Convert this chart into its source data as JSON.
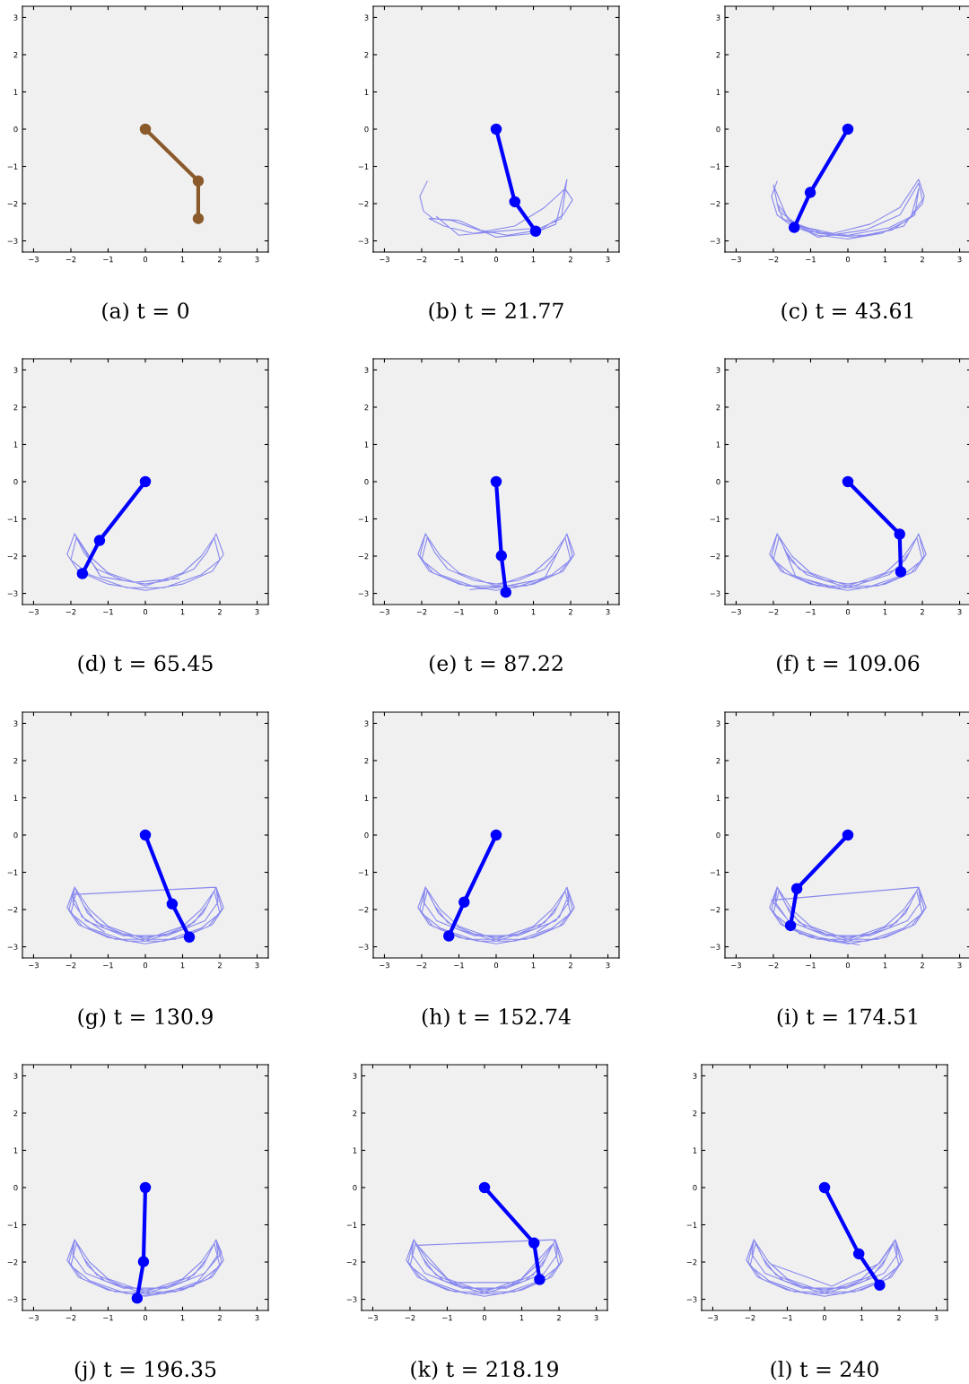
{
  "chart_data": [
    {
      "type": "line",
      "title": "(a) t = 0",
      "xlim": [
        -3.3,
        3.3
      ],
      "ylim": [
        -3.3,
        3.3
      ],
      "xticks": [
        {
          "value": -3,
          "label": "−3"
        },
        {
          "value": -2,
          "label": "−2"
        },
        {
          "value": -1,
          "label": "−1"
        },
        0,
        1,
        2,
        3
      ],
      "yticks": [
        {
          "value": -3,
          "label": "−3"
        },
        {
          "value": -2,
          "label": "−2"
        },
        {
          "value": -1,
          "label": "−1"
        },
        0,
        1,
        2,
        3
      ],
      "grid": false,
      "series": [
        {
          "color": "#8b5a2b",
          "marker": "circle",
          "x": [
            0,
            1.42,
            1.42
          ],
          "values": [
            0,
            -1.39,
            -2.4
          ]
        }
      ]
    },
    {
      "type": "line",
      "title": "(b) t = 21.77",
      "xlim": [
        -3.3,
        3.3
      ],
      "ylim": [
        -3.3,
        3.3
      ],
      "xticks": [
        {
          "value": -3,
          "label": "−3"
        },
        {
          "value": -2,
          "label": "−2"
        },
        {
          "value": -1,
          "label": "−1"
        },
        0,
        1,
        2,
        3
      ],
      "yticks": [
        {
          "value": -3,
          "label": "−3"
        },
        {
          "value": -2,
          "label": "−2"
        },
        {
          "value": -1,
          "label": "−1"
        },
        0,
        1,
        2,
        3
      ],
      "grid": false,
      "series": [
        {
          "color": "#7777ee",
          "x": [
            -1.85,
            -2.05,
            -1.95,
            -1.7,
            -1.2,
            -0.5,
            0.3,
            1.2,
            1.8,
            2.05,
            1.85,
            1.3,
            0.5,
            -0.6,
            -1.4,
            -1.8,
            -1.0,
            0,
            1.0,
            1.6,
            1.9,
            1.75,
            1.2,
            0,
            -1.0,
            -1.6
          ],
          "values": [
            -1.4,
            -1.8,
            -2.2,
            -2.4,
            -2.45,
            -2.7,
            -2.85,
            -2.7,
            -2.3,
            -1.9,
            -1.6,
            -2.1,
            -2.6,
            -2.8,
            -2.6,
            -2.4,
            -2.45,
            -2.9,
            -2.8,
            -2.55,
            -1.35,
            -2.4,
            -2.65,
            -2.75,
            -2.85,
            -2.35
          ]
        },
        {
          "color": "#0000ff",
          "marker": "circle",
          "x": [
            0,
            0.5,
            1.06
          ],
          "values": [
            0,
            -1.95,
            -2.74
          ]
        }
      ]
    },
    {
      "type": "line",
      "title": "(c) t = 43.61",
      "xlim": [
        -3.3,
        3.3
      ],
      "ylim": [
        -3.3,
        3.3
      ],
      "xticks": [
        {
          "value": -3,
          "label": "−3"
        },
        {
          "value": -2,
          "label": "−2"
        },
        {
          "value": -1,
          "label": "−1"
        },
        0,
        1,
        2,
        3
      ],
      "yticks": [
        {
          "value": -3,
          "label": "−3"
        },
        {
          "value": -2,
          "label": "−2"
        },
        {
          "value": -1,
          "label": "−1"
        },
        0,
        1,
        2,
        3
      ],
      "grid": false,
      "series": [
        {
          "color": "#7777ee",
          "x": [
            -1.9,
            -2.05,
            -1.9,
            -1.5,
            -0.8,
            0,
            0.9,
            1.6,
            2.0,
            2.05,
            1.9,
            1.4,
            0.6,
            -0.4,
            -1.3,
            -1.85,
            -2.0,
            -1.6,
            -0.8,
            0.2,
            1.2,
            1.8,
            1.9,
            1.7,
            1.1,
            0,
            -1.0,
            -1.75,
            -1.9,
            -1.5,
            -0.5,
            0.6,
            1.5,
            2.0,
            1.9,
            1.4,
            0.5,
            -0.8,
            -1.6
          ],
          "values": [
            -1.4,
            -1.8,
            -2.3,
            -2.6,
            -2.85,
            -2.95,
            -2.8,
            -2.45,
            -2.0,
            -1.8,
            -1.35,
            -2.1,
            -2.55,
            -2.8,
            -2.6,
            -2.2,
            -1.5,
            -2.45,
            -2.8,
            -2.9,
            -2.7,
            -2.3,
            -1.6,
            -2.35,
            -2.65,
            -2.85,
            -2.75,
            -2.4,
            -2.0,
            -2.5,
            -2.85,
            -2.85,
            -2.6,
            -1.9,
            -1.45,
            -2.3,
            -2.7,
            -2.9,
            -2.45
          ]
        },
        {
          "color": "#0000ff",
          "marker": "circle",
          "x": [
            0,
            -1.01,
            -1.44
          ],
          "values": [
            0,
            -1.7,
            -2.64
          ]
        }
      ]
    },
    {
      "type": "line",
      "title": "(d) t = 65.45",
      "xlim": [
        -3.3,
        3.3
      ],
      "ylim": [
        -3.3,
        3.3
      ],
      "xticks": [
        {
          "value": -3,
          "label": "−3"
        },
        {
          "value": -2,
          "label": "−2"
        },
        {
          "value": -1,
          "label": "−1"
        },
        0,
        1,
        2,
        3
      ],
      "yticks": [
        {
          "value": -3,
          "label": "−3"
        },
        {
          "value": -2,
          "label": "−2"
        },
        {
          "value": -1,
          "label": "−1"
        },
        0,
        1,
        2,
        3
      ],
      "grid": false,
      "series": [
        {
          "color": "#7777ee",
          "x": [
            -1.9,
            -2.1,
            -1.8,
            -1.0,
            0,
            1.0,
            1.8,
            2.1,
            1.9,
            1.65,
            1.3,
            0.6,
            0,
            -0.6,
            -1.3,
            -1.65,
            -1.85,
            -2.0,
            -1.5,
            -0.5,
            0.5,
            1.5,
            2.0,
            1.85,
            1.5,
            1.0,
            0,
            -1.0,
            -1.5,
            -1.9,
            -1.2,
            -0.3,
            0.9
          ],
          "values": [
            -1.4,
            -1.95,
            -2.4,
            -2.75,
            -2.92,
            -2.75,
            -2.4,
            -1.95,
            -1.4,
            -1.9,
            -2.35,
            -2.65,
            -2.75,
            -2.65,
            -2.35,
            -1.9,
            -1.5,
            -2.1,
            -2.5,
            -2.85,
            -2.85,
            -2.5,
            -2.1,
            -1.5,
            -2.0,
            -2.45,
            -2.8,
            -2.45,
            -2.0,
            -1.4,
            -2.55,
            -2.7,
            -2.6
          ]
        },
        {
          "color": "#0000ff",
          "marker": "circle",
          "x": [
            0,
            -1.23,
            -1.69
          ],
          "values": [
            0,
            -1.58,
            -2.47
          ]
        }
      ]
    },
    {
      "type": "line",
      "title": "(e) t = 87.22",
      "xlim": [
        -3.3,
        3.3
      ],
      "ylim": [
        -3.3,
        3.3
      ],
      "xticks": [
        {
          "value": -3,
          "label": "−3"
        },
        {
          "value": -2,
          "label": "−2"
        },
        {
          "value": -1,
          "label": "−1"
        },
        0,
        1,
        2,
        3
      ],
      "yticks": [
        {
          "value": -3,
          "label": "−3"
        },
        {
          "value": -2,
          "label": "−2"
        },
        {
          "value": -1,
          "label": "−1"
        },
        0,
        1,
        2,
        3
      ],
      "grid": false,
      "series": [
        {
          "color": "#7777ee",
          "x": [
            -1.9,
            -2.1,
            -1.8,
            -1.0,
            0,
            1.0,
            1.8,
            2.1,
            1.9,
            1.65,
            1.3,
            0.6,
            0,
            -0.6,
            -1.3,
            -1.65,
            -1.85,
            -2.0,
            -1.5,
            -0.5,
            0.5,
            1.5,
            2.0,
            1.85,
            1.5,
            1.0,
            0,
            -1.0,
            -1.5,
            -1.9,
            -2.05,
            -1.7,
            -0.8,
            0.8,
            1.7,
            2.05,
            1.9,
            1.3,
            0.4,
            -0.7
          ],
          "values": [
            -1.4,
            -1.95,
            -2.4,
            -2.75,
            -2.92,
            -2.75,
            -2.4,
            -1.95,
            -1.4,
            -1.9,
            -2.35,
            -2.65,
            -2.75,
            -2.65,
            -2.35,
            -1.9,
            -1.5,
            -2.1,
            -2.5,
            -2.85,
            -2.85,
            -2.5,
            -2.1,
            -1.5,
            -2.0,
            -2.45,
            -2.8,
            -2.45,
            -2.0,
            -1.4,
            -2.0,
            -2.45,
            -2.8,
            -2.8,
            -2.45,
            -2.0,
            -1.4,
            -2.6,
            -2.78,
            -2.9
          ]
        },
        {
          "color": "#0000ff",
          "marker": "circle",
          "x": [
            0,
            0.14,
            0.26
          ],
          "values": [
            0,
            -1.99,
            -2.97
          ]
        }
      ]
    },
    {
      "type": "line",
      "title": "(f) t = 109.06",
      "xlim": [
        -3.3,
        3.3
      ],
      "ylim": [
        -3.3,
        3.3
      ],
      "xticks": [
        {
          "value": -3,
          "label": "−3"
        },
        {
          "value": -2,
          "label": "−2"
        },
        {
          "value": -1,
          "label": "−1"
        },
        0,
        1,
        2,
        3
      ],
      "yticks": [
        {
          "value": -3,
          "label": "−3"
        },
        {
          "value": -2,
          "label": "−2"
        },
        {
          "value": -1,
          "label": "−1"
        },
        0,
        1,
        2,
        3
      ],
      "grid": false,
      "series": [
        {
          "color": "#7777ee",
          "x": [
            -1.9,
            -2.1,
            -1.8,
            -1.0,
            0,
            1.0,
            1.8,
            2.1,
            1.9,
            1.65,
            1.3,
            0.6,
            0,
            -0.6,
            -1.3,
            -1.65,
            -1.85,
            -2.0,
            -1.5,
            -0.5,
            0.5,
            1.5,
            2.0,
            1.85,
            1.5,
            1.0,
            0,
            -1.0,
            -1.5,
            -1.9,
            -2.05,
            -1.7,
            -0.8,
            0.8,
            1.7,
            2.05,
            1.9,
            1.55,
            1.1,
            0,
            -1.1,
            -1.55,
            -1.9,
            -1.75,
            -1.4,
            -0.2
          ],
          "values": [
            -1.4,
            -1.95,
            -2.4,
            -2.75,
            -2.92,
            -2.75,
            -2.4,
            -1.95,
            -1.4,
            -1.9,
            -2.35,
            -2.65,
            -2.75,
            -2.65,
            -2.35,
            -1.9,
            -1.5,
            -2.1,
            -2.5,
            -2.85,
            -2.85,
            -2.5,
            -2.1,
            -1.5,
            -2.0,
            -2.45,
            -2.8,
            -2.45,
            -2.0,
            -1.4,
            -2.0,
            -2.45,
            -2.8,
            -2.8,
            -2.45,
            -2.0,
            -1.4,
            -2.1,
            -2.5,
            -2.85,
            -2.5,
            -2.1,
            -1.4,
            -1.7,
            -2.55,
            -2.88
          ]
        },
        {
          "color": "#0000ff",
          "marker": "circle",
          "x": [
            0,
            1.39,
            1.42
          ],
          "values": [
            0,
            -1.41,
            -2.42
          ]
        }
      ]
    },
    {
      "type": "line",
      "title": "(g) t = 130.9",
      "xlim": [
        -3.3,
        3.3
      ],
      "ylim": [
        -3.3,
        3.3
      ],
      "xticks": [
        {
          "value": -3,
          "label": "−3"
        },
        {
          "value": -2,
          "label": "−2"
        },
        {
          "value": -1,
          "label": "−1"
        },
        0,
        1,
        2,
        3
      ],
      "yticks": [
        {
          "value": -3,
          "label": "−3"
        },
        {
          "value": -2,
          "label": "−2"
        },
        {
          "value": -1,
          "label": "−1"
        },
        0,
        1,
        2,
        3
      ],
      "grid": false,
      "series": [
        {
          "color": "#7777ee",
          "x": [
            -1.9,
            -2.1,
            -1.8,
            -1.0,
            0,
            1.0,
            1.8,
            2.1,
            1.9,
            1.65,
            1.3,
            0.6,
            0,
            -0.6,
            -1.3,
            -1.65,
            -1.85,
            -2.0,
            -1.5,
            -0.5,
            0.5,
            1.5,
            2.0,
            1.85,
            1.5,
            1.0,
            0,
            -1.0,
            -1.5,
            -1.9,
            -2.05,
            -1.7,
            -0.8,
            0.8,
            1.7,
            2.05,
            1.9,
            1.55,
            1.1,
            0,
            -1.1,
            -1.55,
            -1.9,
            -1.95,
            -1.6,
            -0.6,
            0.6,
            1.6,
            1.95,
            1.9,
            -1.95,
            -1.7,
            -1.1
          ],
          "values": [
            -1.4,
            -1.95,
            -2.4,
            -2.75,
            -2.92,
            -2.75,
            -2.4,
            -1.95,
            -1.4,
            -1.9,
            -2.35,
            -2.65,
            -2.75,
            -2.65,
            -2.35,
            -1.9,
            -1.5,
            -2.1,
            -2.5,
            -2.85,
            -2.85,
            -2.5,
            -2.1,
            -1.5,
            -2.0,
            -2.45,
            -2.8,
            -2.45,
            -2.0,
            -1.4,
            -2.0,
            -2.45,
            -2.8,
            -2.8,
            -2.45,
            -2.0,
            -1.4,
            -2.1,
            -2.5,
            -2.85,
            -2.5,
            -2.1,
            -1.4,
            -1.8,
            -2.3,
            -2.7,
            -2.7,
            -2.3,
            -1.8,
            -1.4,
            -1.6,
            -2.2,
            -2.6
          ]
        },
        {
          "color": "#0000ff",
          "marker": "circle",
          "x": [
            0,
            0.72,
            1.18
          ],
          "values": [
            0,
            -1.85,
            -2.74
          ]
        }
      ]
    },
    {
      "type": "line",
      "title": "(h) t = 152.74",
      "xlim": [
        -3.3,
        3.3
      ],
      "ylim": [
        -3.3,
        3.3
      ],
      "xticks": [
        {
          "value": -3,
          "label": "−3"
        },
        {
          "value": -2,
          "label": "−2"
        },
        {
          "value": -1,
          "label": "−1"
        },
        0,
        1,
        2,
        3
      ],
      "yticks": [
        {
          "value": -3,
          "label": "−3"
        },
        {
          "value": -2,
          "label": "−2"
        },
        {
          "value": -1,
          "label": "−1"
        },
        0,
        1,
        2,
        3
      ],
      "grid": false,
      "series": [
        {
          "color": "#7777ee",
          "x": [
            -1.9,
            -2.1,
            -1.8,
            -1.0,
            0,
            1.0,
            1.8,
            2.1,
            1.9,
            1.65,
            1.3,
            0.6,
            0,
            -0.6,
            -1.3,
            -1.65,
            -1.85,
            -2.0,
            -1.5,
            -0.5,
            0.5,
            1.5,
            2.0,
            1.85,
            1.5,
            1.0,
            0,
            -1.0,
            -1.5,
            -1.9,
            -2.05,
            -1.7,
            -0.8,
            0.8,
            1.7,
            2.05,
            1.9,
            1.55,
            1.1,
            0,
            -1.1,
            -1.55,
            -1.9,
            -1.95,
            -1.6,
            -0.6,
            0.6,
            1.6,
            1.95,
            1.9,
            1.95,
            1.7,
            1.1
          ],
          "values": [
            -1.4,
            -1.95,
            -2.4,
            -2.75,
            -2.92,
            -2.75,
            -2.4,
            -1.95,
            -1.4,
            -1.9,
            -2.35,
            -2.65,
            -2.75,
            -2.65,
            -2.35,
            -1.9,
            -1.5,
            -2.1,
            -2.5,
            -2.85,
            -2.85,
            -2.5,
            -2.1,
            -1.5,
            -2.0,
            -2.45,
            -2.8,
            -2.45,
            -2.0,
            -1.4,
            -2.0,
            -2.45,
            -2.8,
            -2.8,
            -2.45,
            -2.0,
            -1.4,
            -2.1,
            -2.5,
            -2.85,
            -2.5,
            -2.1,
            -1.4,
            -1.8,
            -2.3,
            -2.7,
            -2.7,
            -2.3,
            -1.8,
            -1.4,
            -1.6,
            -2.2,
            -2.6
          ]
        },
        {
          "color": "#0000ff",
          "marker": "circle",
          "x": [
            0,
            -0.86,
            -1.27
          ],
          "values": [
            0,
            -1.8,
            -2.71
          ]
        }
      ]
    },
    {
      "type": "line",
      "title": "(i) t = 174.51",
      "xlim": [
        -3.3,
        3.3
      ],
      "ylim": [
        -3.3,
        3.3
      ],
      "xticks": [
        {
          "value": -3,
          "label": "−3"
        },
        {
          "value": -2,
          "label": "−2"
        },
        {
          "value": -1,
          "label": "−1"
        },
        0,
        1,
        2,
        3
      ],
      "yticks": [
        {
          "value": -3,
          "label": "−3"
        },
        {
          "value": -2,
          "label": "−2"
        },
        {
          "value": -1,
          "label": "−1"
        },
        0,
        1,
        2,
        3
      ],
      "grid": false,
      "series": [
        {
          "color": "#7777ee",
          "x": [
            -1.9,
            -2.1,
            -1.8,
            -1.0,
            0,
            1.0,
            1.8,
            2.1,
            1.9,
            1.65,
            1.3,
            0.6,
            0,
            -0.6,
            -1.3,
            -1.65,
            -1.85,
            -2.0,
            -1.5,
            -0.5,
            0.5,
            1.5,
            2.0,
            1.85,
            1.5,
            1.0,
            0,
            -1.0,
            -1.5,
            -1.9,
            -2.05,
            -1.7,
            -0.8,
            0.8,
            1.7,
            2.05,
            1.9,
            1.55,
            1.1,
            0,
            -1.1,
            -1.55,
            -1.9,
            -1.95,
            -1.6,
            -0.6,
            0.6,
            1.6,
            1.95,
            1.9,
            -2.05,
            -1.3,
            0.3
          ],
          "values": [
            -1.4,
            -1.95,
            -2.4,
            -2.75,
            -2.92,
            -2.75,
            -2.4,
            -1.95,
            -1.4,
            -1.9,
            -2.35,
            -2.65,
            -2.75,
            -2.65,
            -2.35,
            -1.9,
            -1.5,
            -2.1,
            -2.5,
            -2.85,
            -2.85,
            -2.5,
            -2.1,
            -1.5,
            -2.0,
            -2.45,
            -2.8,
            -2.45,
            -2.0,
            -1.4,
            -2.0,
            -2.45,
            -2.8,
            -2.8,
            -2.45,
            -2.0,
            -1.4,
            -2.1,
            -2.5,
            -2.85,
            -2.5,
            -2.1,
            -1.4,
            -1.8,
            -2.3,
            -2.7,
            -2.7,
            -2.3,
            -1.8,
            -1.4,
            -1.75,
            -2.65,
            -2.95
          ]
        },
        {
          "color": "#0000ff",
          "marker": "circle",
          "x": [
            0,
            -1.37,
            -1.54
          ],
          "values": [
            0,
            -1.44,
            -2.43
          ]
        }
      ]
    },
    {
      "type": "line",
      "title": "(j) t = 196.35",
      "xlim": [
        -3.3,
        3.3
      ],
      "ylim": [
        -3.3,
        3.3
      ],
      "xticks": [
        {
          "value": -3,
          "label": "−3"
        },
        {
          "value": -2,
          "label": "−2"
        },
        {
          "value": -1,
          "label": "−1"
        },
        0,
        1,
        2,
        3
      ],
      "yticks": [
        {
          "value": -3,
          "label": "−3"
        },
        {
          "value": -2,
          "label": "−2"
        },
        {
          "value": -1,
          "label": "−1"
        },
        0,
        1,
        2,
        3
      ],
      "grid": false,
      "series": [
        {
          "color": "#7777ee",
          "x": [
            -1.9,
            -2.1,
            -1.8,
            -1.0,
            0,
            1.0,
            1.8,
            2.1,
            1.9,
            1.65,
            1.3,
            0.6,
            0,
            -0.6,
            -1.3,
            -1.65,
            -1.85,
            -2.0,
            -1.5,
            -0.5,
            0.5,
            1.5,
            2.0,
            1.85,
            1.5,
            1.0,
            0,
            -1.0,
            -1.5,
            -1.9,
            -2.05,
            -1.7,
            -0.8,
            0.8,
            1.7,
            2.05,
            1.9,
            1.55,
            1.1,
            0,
            -1.1,
            -1.55,
            -1.9,
            -1.95,
            -1.6,
            -0.6,
            0.6,
            1.6,
            1.95,
            1.9,
            2.05,
            1.3,
            -0.3
          ],
          "values": [
            -1.4,
            -1.95,
            -2.4,
            -2.75,
            -2.92,
            -2.75,
            -2.4,
            -1.95,
            -1.4,
            -1.9,
            -2.35,
            -2.65,
            -2.75,
            -2.65,
            -2.35,
            -1.9,
            -1.5,
            -2.1,
            -2.5,
            -2.85,
            -2.85,
            -2.5,
            -2.1,
            -1.5,
            -2.0,
            -2.45,
            -2.8,
            -2.45,
            -2.0,
            -1.4,
            -2.0,
            -2.45,
            -2.8,
            -2.8,
            -2.45,
            -2.0,
            -1.4,
            -2.1,
            -2.5,
            -2.85,
            -2.5,
            -2.1,
            -1.4,
            -1.8,
            -2.3,
            -2.7,
            -2.7,
            -2.3,
            -1.8,
            -1.4,
            -1.75,
            -2.65,
            -2.95
          ]
        },
        {
          "color": "#0000ff",
          "marker": "circle",
          "x": [
            0,
            -0.05,
            -0.22
          ],
          "values": [
            0,
            -1.99,
            -2.97
          ]
        }
      ]
    },
    {
      "type": "line",
      "title": "(k) t = 218.19",
      "xlim": [
        -3.3,
        3.3
      ],
      "ylim": [
        -3.3,
        3.3
      ],
      "xticks": [
        {
          "value": -3,
          "label": "−3"
        },
        {
          "value": -2,
          "label": "−2"
        },
        {
          "value": -1,
          "label": "−1"
        },
        0,
        1,
        2,
        3
      ],
      "yticks": [
        {
          "value": -3,
          "label": "−3"
        },
        {
          "value": -2,
          "label": "−2"
        },
        {
          "value": -1,
          "label": "−1"
        },
        0,
        1,
        2,
        3
      ],
      "grid": false,
      "series": [
        {
          "color": "#7777ee",
          "x": [
            -1.9,
            -2.1,
            -1.8,
            -1.0,
            0,
            1.0,
            1.8,
            2.1,
            1.9,
            1.65,
            1.3,
            0.6,
            0,
            -0.6,
            -1.3,
            -1.65,
            -1.85,
            -2.0,
            -1.5,
            -0.5,
            0.5,
            1.5,
            2.0,
            1.85,
            1.5,
            1.0,
            0,
            -1.0,
            -1.5,
            -1.9,
            -2.05,
            -1.7,
            -0.8,
            0.8,
            1.7,
            2.05,
            1.9,
            1.55,
            1.1,
            0,
            -1.1,
            -1.55,
            -1.9,
            -1.95,
            -1.6,
            -0.6,
            0.6,
            1.6,
            1.95,
            1.9,
            -1.8,
            -0.9,
            0.9,
            1.8
          ],
          "values": [
            -1.4,
            -1.95,
            -2.4,
            -2.75,
            -2.92,
            -2.75,
            -2.4,
            -1.95,
            -1.4,
            -1.9,
            -2.35,
            -2.65,
            -2.75,
            -2.65,
            -2.35,
            -1.9,
            -1.5,
            -2.1,
            -2.5,
            -2.85,
            -2.85,
            -2.5,
            -2.1,
            -1.5,
            -2.0,
            -2.45,
            -2.8,
            -2.45,
            -2.0,
            -1.4,
            -2.0,
            -2.45,
            -2.8,
            -2.8,
            -2.45,
            -2.0,
            -1.4,
            -2.1,
            -2.5,
            -2.85,
            -2.5,
            -2.1,
            -1.4,
            -1.8,
            -2.3,
            -2.7,
            -2.7,
            -2.3,
            -1.8,
            -1.4,
            -1.55,
            -2.55,
            -2.55,
            -1.55
          ]
        },
        {
          "color": "#0000ff",
          "marker": "circle",
          "x": [
            0,
            1.33,
            1.48
          ],
          "values": [
            0,
            -1.49,
            -2.47
          ]
        }
      ]
    },
    {
      "type": "line",
      "title": "(l) t = 240",
      "xlim": [
        -3.3,
        3.3
      ],
      "ylim": [
        -3.3,
        3.3
      ],
      "xticks": [
        {
          "value": -3,
          "label": "−3"
        },
        {
          "value": -2,
          "label": "−2"
        },
        {
          "value": -1,
          "label": "−1"
        },
        0,
        1,
        2,
        3
      ],
      "yticks": [
        {
          "value": -3,
          "label": "−3"
        },
        {
          "value": -2,
          "label": "−2"
        },
        {
          "value": -1,
          "label": "−1"
        },
        0,
        1,
        2,
        3
      ],
      "grid": false,
      "series": [
        {
          "color": "#7777ee",
          "x": [
            -1.9,
            -2.1,
            -1.8,
            -1.0,
            0,
            1.0,
            1.8,
            2.1,
            1.9,
            1.65,
            1.3,
            0.6,
            0,
            -0.6,
            -1.3,
            -1.65,
            -1.85,
            -2.0,
            -1.5,
            -0.5,
            0.5,
            1.5,
            2.0,
            1.85,
            1.5,
            1.0,
            0,
            -1.0,
            -1.5,
            -1.9,
            -2.05,
            -1.7,
            -0.8,
            0.8,
            1.7,
            2.05,
            1.9,
            1.55,
            1.1,
            0,
            -1.1,
            -1.55,
            -1.9,
            -1.95,
            -1.6,
            -0.6,
            0.6,
            1.6,
            1.95,
            1.9,
            1.45,
            0.2,
            -1.45
          ],
          "values": [
            -1.4,
            -1.95,
            -2.4,
            -2.75,
            -2.92,
            -2.75,
            -2.4,
            -1.95,
            -1.4,
            -1.9,
            -2.35,
            -2.65,
            -2.75,
            -2.65,
            -2.35,
            -1.9,
            -1.5,
            -2.1,
            -2.5,
            -2.85,
            -2.85,
            -2.5,
            -2.1,
            -1.5,
            -2.0,
            -2.45,
            -2.8,
            -2.45,
            -2.0,
            -1.4,
            -2.0,
            -2.45,
            -2.8,
            -2.8,
            -2.45,
            -2.0,
            -1.4,
            -2.1,
            -2.5,
            -2.85,
            -2.5,
            -2.1,
            -1.4,
            -1.8,
            -2.3,
            -2.7,
            -2.7,
            -2.3,
            -1.8,
            -1.4,
            -2.05,
            -2.65,
            -2.05
          ]
        },
        {
          "color": "#0000ff",
          "marker": "circle",
          "x": [
            0,
            0.92,
            1.48
          ],
          "values": [
            0,
            -1.78,
            -2.62
          ]
        }
      ]
    }
  ]
}
